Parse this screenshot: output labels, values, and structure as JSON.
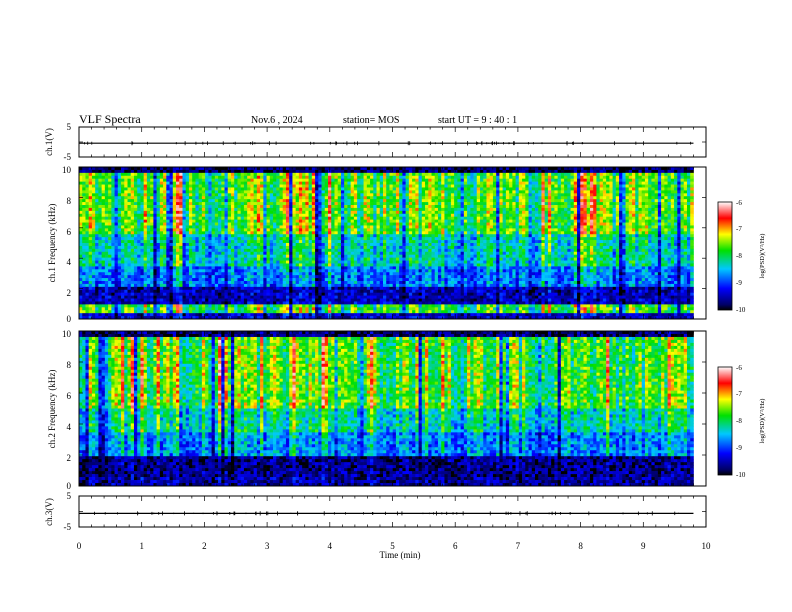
{
  "header": {
    "title": "VLF Spectra",
    "date": "Nov.6 , 2024",
    "station": "station= MOS",
    "start_ut": "start UT = 9 : 40 : 1"
  },
  "chart_data": [
    {
      "type": "line",
      "panel": "ch1_waveform",
      "ylabel": "ch.1(V)",
      "ylim": [
        -5,
        5
      ],
      "y_ticks": [
        "5",
        "-5"
      ],
      "xlim": [
        0,
        10
      ],
      "series": [
        {
          "x": [
            0,
            9.8
          ],
          "values": [
            -0.4,
            -0.4
          ]
        }
      ]
    },
    {
      "type": "heatmap",
      "panel": "ch1_spectrogram",
      "ylabel": "ch.1 Frequency (kHz)",
      "ylim": [
        0,
        10
      ],
      "y_ticks": [
        "0",
        "2",
        "4",
        "6",
        "8",
        "10"
      ],
      "xlim": [
        0,
        10
      ],
      "data_end_min": 9.8,
      "colorbar": {
        "label": "log(PSD)(V²/Hz)",
        "ticks": [
          "-6",
          "-7",
          "-8",
          "-9",
          "-10"
        ],
        "range": [
          -10,
          -6
        ]
      }
    },
    {
      "type": "heatmap",
      "panel": "ch2_spectrogram",
      "ylabel": "ch.2 Frequency (kHz)",
      "ylim": [
        0,
        10
      ],
      "y_ticks": [
        "0",
        "2",
        "4",
        "6",
        "8",
        "10"
      ],
      "xlim": [
        0,
        10
      ],
      "data_end_min": 9.8,
      "colorbar": {
        "label": "log(PSD)(V²/Hz)",
        "ticks": [
          "-6",
          "-7",
          "-8",
          "-9",
          "-10"
        ],
        "range": [
          -10,
          -6
        ]
      }
    },
    {
      "type": "line",
      "panel": "ch3_waveform",
      "ylabel": "ch.3(V)",
      "ylim": [
        -5,
        5
      ],
      "y_ticks": [
        "5",
        "-5"
      ],
      "xlim": [
        0,
        10
      ],
      "xlabel": "Time (min)",
      "x_ticks": [
        "0",
        "1",
        "2",
        "3",
        "4",
        "5",
        "6",
        "7",
        "8",
        "9",
        "10"
      ],
      "series": [
        {
          "x": [
            0,
            9.8
          ],
          "values": [
            -0.6,
            -0.6
          ]
        }
      ]
    }
  ]
}
